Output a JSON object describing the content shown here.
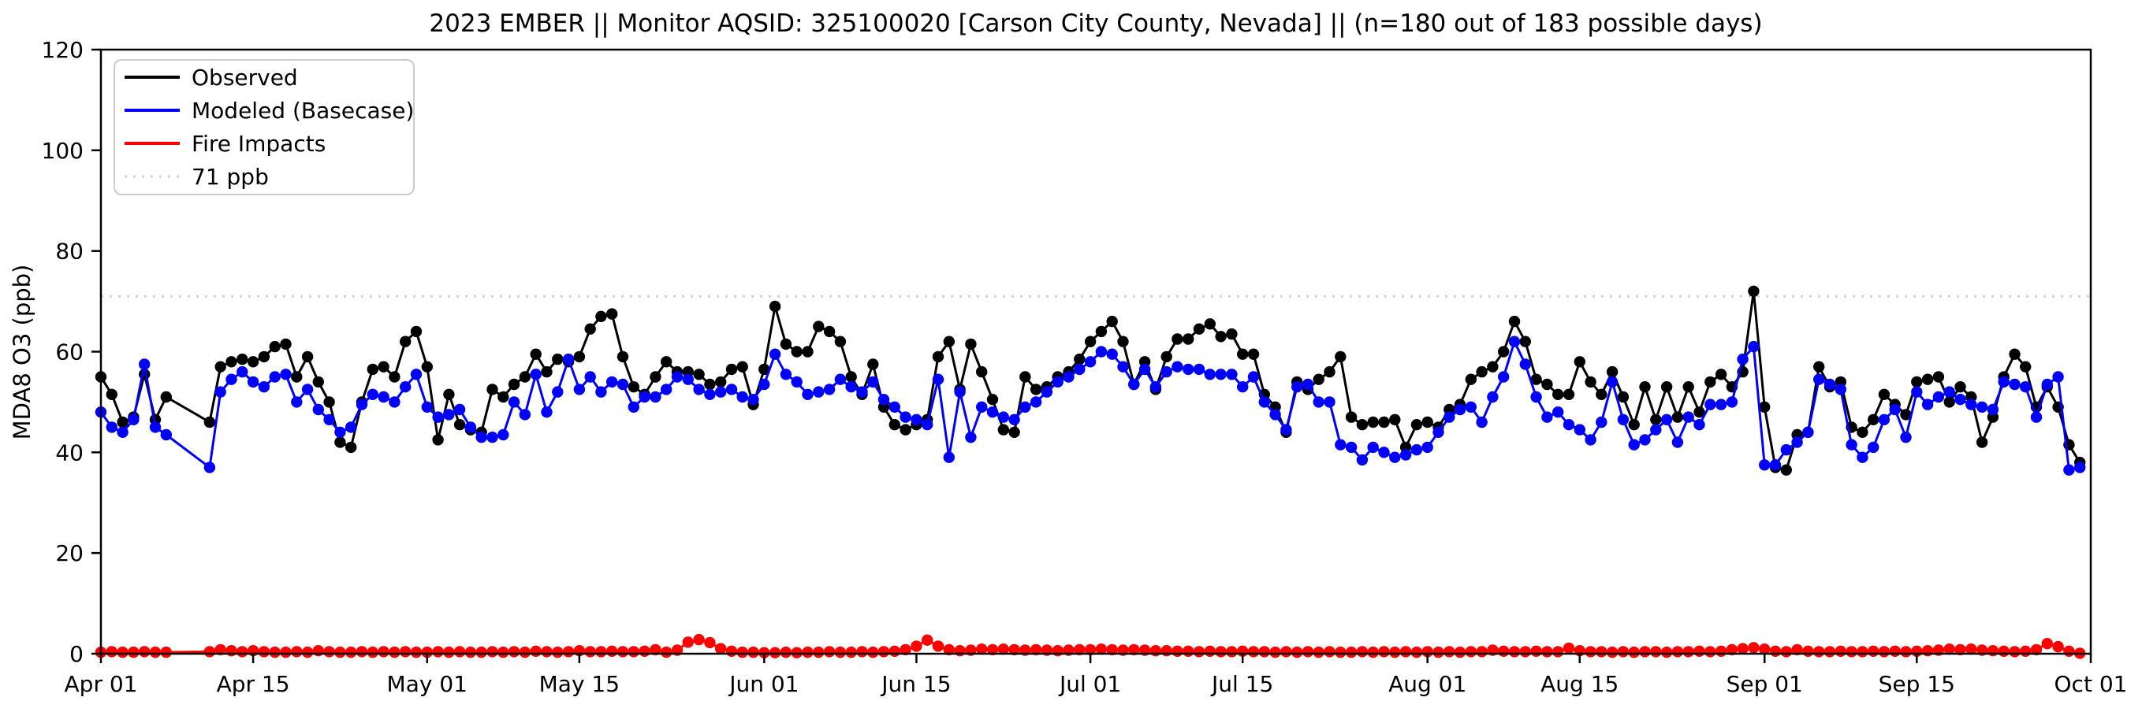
{
  "chart_data": {
    "type": "line",
    "title": "2023 EMBER || Monitor AQSID: 325100020 [Carson City County, Nevada] || (n=180 out of 183 possible days)",
    "ylabel": "MDA8 O3 (ppb)",
    "xlabel": "",
    "ylim": [
      0,
      120
    ],
    "yticks": [
      0,
      20,
      40,
      60,
      80,
      100,
      120
    ],
    "x_start_label": "Apr 01",
    "x_end_label": "Oct 01",
    "n_days": 183,
    "x_tick_days": [
      0,
      14,
      30,
      44,
      61,
      75,
      91,
      105,
      122,
      136,
      153,
      167,
      183
    ],
    "x_tick_labels": [
      "Apr 01",
      "Apr 15",
      "May 01",
      "May 15",
      "Jun 01",
      "Jun 15",
      "Jul 01",
      "Jul 15",
      "Aug 01",
      "Aug 15",
      "Sep 01",
      "Sep 15",
      "Oct 01"
    ],
    "grid": false,
    "legend_position": "upper left",
    "threshold": {
      "label": "71 ppb",
      "value": 71,
      "color": "#d3d3d3"
    },
    "missing_days_note": "180 of 183 days have data; gap Apr 08-10",
    "series": [
      {
        "name": "Observed",
        "color": "#000000",
        "values": [
          55,
          51.5,
          46,
          47,
          55.5,
          46.5,
          51,
          null,
          null,
          null,
          46,
          57,
          58,
          58.5,
          58,
          59,
          61,
          61.5,
          55,
          59,
          54,
          50,
          42,
          41,
          50,
          56.5,
          57,
          55,
          62,
          64,
          57,
          42.5,
          51.5,
          45.5,
          44.5,
          44,
          52.5,
          51,
          53.5,
          55,
          59.5,
          56,
          58.5,
          58,
          59,
          64.5,
          67,
          67.5,
          59,
          53,
          51.5,
          55,
          58,
          56,
          56,
          55.5,
          53.5,
          54,
          56.5,
          57,
          49.5,
          56.5,
          69,
          61.5,
          60,
          60,
          65,
          64,
          62,
          55,
          51.5,
          57.5,
          49,
          45.5,
          44.5,
          45.5,
          46.5,
          59,
          62,
          52.5,
          61.5,
          56,
          50.5,
          44.5,
          44,
          55,
          52.5,
          53,
          55,
          56,
          58.5,
          62,
          64,
          66,
          62,
          53.5,
          58,
          52.5,
          59,
          62.5,
          62.5,
          64.5,
          65.5,
          63,
          63.5,
          59.5,
          59.5,
          51.5,
          49,
          44,
          54,
          52.5,
          54.5,
          56,
          59,
          47,
          45.5,
          46,
          46,
          46.5,
          41,
          45.5,
          46,
          45,
          48.5,
          49.5,
          54.5,
          56,
          57,
          60,
          66,
          62,
          54.5,
          53.5,
          51.5,
          51.5,
          58,
          54,
          51.5,
          56,
          51,
          45.5,
          53,
          46.5,
          53,
          47,
          53,
          48,
          54,
          55.5,
          53,
          56,
          72,
          49,
          37,
          36.5,
          43.5,
          44,
          57,
          53,
          54,
          45,
          44,
          46.5,
          51.5,
          49.5,
          47.5,
          54,
          54.5,
          55,
          50,
          53,
          51,
          42,
          47,
          55,
          59.5,
          57,
          49,
          53,
          49,
          41.5,
          38
        ]
      },
      {
        "name": "Modeled (Basecase)",
        "color": "#0000ff",
        "values": [
          48,
          45,
          44,
          46.5,
          57.5,
          45,
          43.5,
          null,
          null,
          null,
          37,
          52,
          54.5,
          56,
          54,
          53,
          55,
          55.5,
          50,
          52.5,
          48.5,
          46.5,
          44,
          45,
          49.5,
          51.5,
          51,
          50,
          53,
          55.5,
          49,
          47,
          47.5,
          48.5,
          45,
          43,
          43,
          43.5,
          50,
          47.5,
          55.5,
          48,
          52,
          58.5,
          52.5,
          55,
          52,
          54,
          53.5,
          49,
          51,
          51,
          52.5,
          55,
          54.5,
          52.5,
          51.5,
          52,
          52.5,
          51,
          50.5,
          53.5,
          59.5,
          55.5,
          54,
          51.5,
          52,
          52.5,
          54.5,
          53,
          52,
          54,
          50.5,
          49,
          47,
          46.5,
          45.5,
          54.5,
          39,
          52,
          43,
          49,
          48,
          47,
          46.5,
          49,
          50,
          52,
          54,
          55,
          56.5,
          58,
          60,
          59.5,
          57,
          53.5,
          56.5,
          53,
          56,
          57,
          56.5,
          56.5,
          55.5,
          55.5,
          55.5,
          53,
          55,
          50,
          47.5,
          44.5,
          53,
          53.5,
          50,
          50,
          41.5,
          41,
          38.5,
          41,
          40,
          39,
          39.5,
          40.5,
          41,
          44,
          47,
          48.5,
          49,
          46,
          51,
          55,
          62,
          57.5,
          51,
          47,
          48,
          45.5,
          44.5,
          42.5,
          46,
          54,
          46.5,
          41.5,
          42.5,
          44.5,
          46.5,
          42,
          47,
          45.5,
          49.5,
          49.5,
          50,
          58.5,
          61,
          37.5,
          37.5,
          40.5,
          42,
          44,
          54.5,
          53.5,
          52.5,
          41.5,
          39,
          41,
          46.5,
          48.5,
          43,
          52,
          49.5,
          51,
          52,
          50.5,
          49.5,
          49,
          48.5,
          54,
          53.5,
          53,
          47,
          53.5,
          55,
          36.5,
          37
        ]
      },
      {
        "name": "Fire Impacts",
        "color": "#ff0000",
        "values": [
          0.3,
          0.4,
          0.3,
          0.3,
          0.4,
          0.3,
          0.3,
          null,
          null,
          null,
          0.4,
          0.8,
          0.6,
          0.4,
          0.6,
          0.4,
          0.3,
          0.3,
          0.4,
          0.3,
          0.6,
          0.4,
          0.3,
          0.3,
          0.4,
          0.3,
          0.4,
          0.3,
          0.4,
          0.3,
          0.3,
          0.4,
          0.3,
          0.4,
          0.3,
          0.3,
          0.4,
          0.3,
          0.4,
          0.3,
          0.5,
          0.4,
          0.3,
          0.4,
          0.6,
          0.4,
          0.4,
          0.5,
          0.4,
          0.4,
          0.5,
          0.8,
          0.3,
          0.7,
          2.3,
          2.8,
          2.2,
          1.0,
          0.5,
          0.3,
          0.3,
          0.2,
          0.2,
          0.3,
          0.2,
          0.3,
          0.3,
          0.4,
          0.3,
          0.3,
          0.4,
          0.3,
          0.4,
          0.5,
          0.8,
          1.5,
          2.7,
          1.5,
          0.8,
          0.6,
          0.7,
          0.9,
          0.8,
          0.9,
          0.8,
          0.7,
          0.8,
          0.7,
          0.6,
          0.7,
          0.8,
          0.8,
          0.9,
          0.8,
          0.7,
          0.8,
          0.7,
          0.6,
          0.6,
          0.5,
          0.5,
          0.4,
          0.5,
          0.4,
          0.4,
          0.5,
          0.4,
          0.4,
          0.3,
          0.4,
          0.3,
          0.4,
          0.3,
          0.4,
          0.3,
          0.3,
          0.4,
          0.3,
          0.4,
          0.3,
          0.4,
          0.3,
          0.4,
          0.3,
          0.4,
          0.3,
          0.4,
          0.4,
          0.7,
          0.5,
          0.4,
          0.4,
          0.5,
          0.4,
          0.4,
          1.1,
          0.6,
          0.4,
          0.4,
          0.3,
          0.4,
          0.3,
          0.4,
          0.4,
          0.3,
          0.4,
          0.4,
          0.5,
          0.4,
          0.5,
          0.8,
          1.0,
          1.2,
          0.9,
          0.5,
          0.4,
          0.8,
          0.5,
          0.4,
          0.4,
          0.5,
          0.4,
          0.4,
          0.5,
          0.4,
          0.5,
          0.4,
          0.5,
          0.6,
          0.7,
          0.9,
          0.8,
          0.9,
          0.7,
          0.6,
          0.5,
          0.4,
          0.5,
          0.8,
          2.0,
          1.4,
          0.5,
          0.1
        ]
      }
    ]
  }
}
